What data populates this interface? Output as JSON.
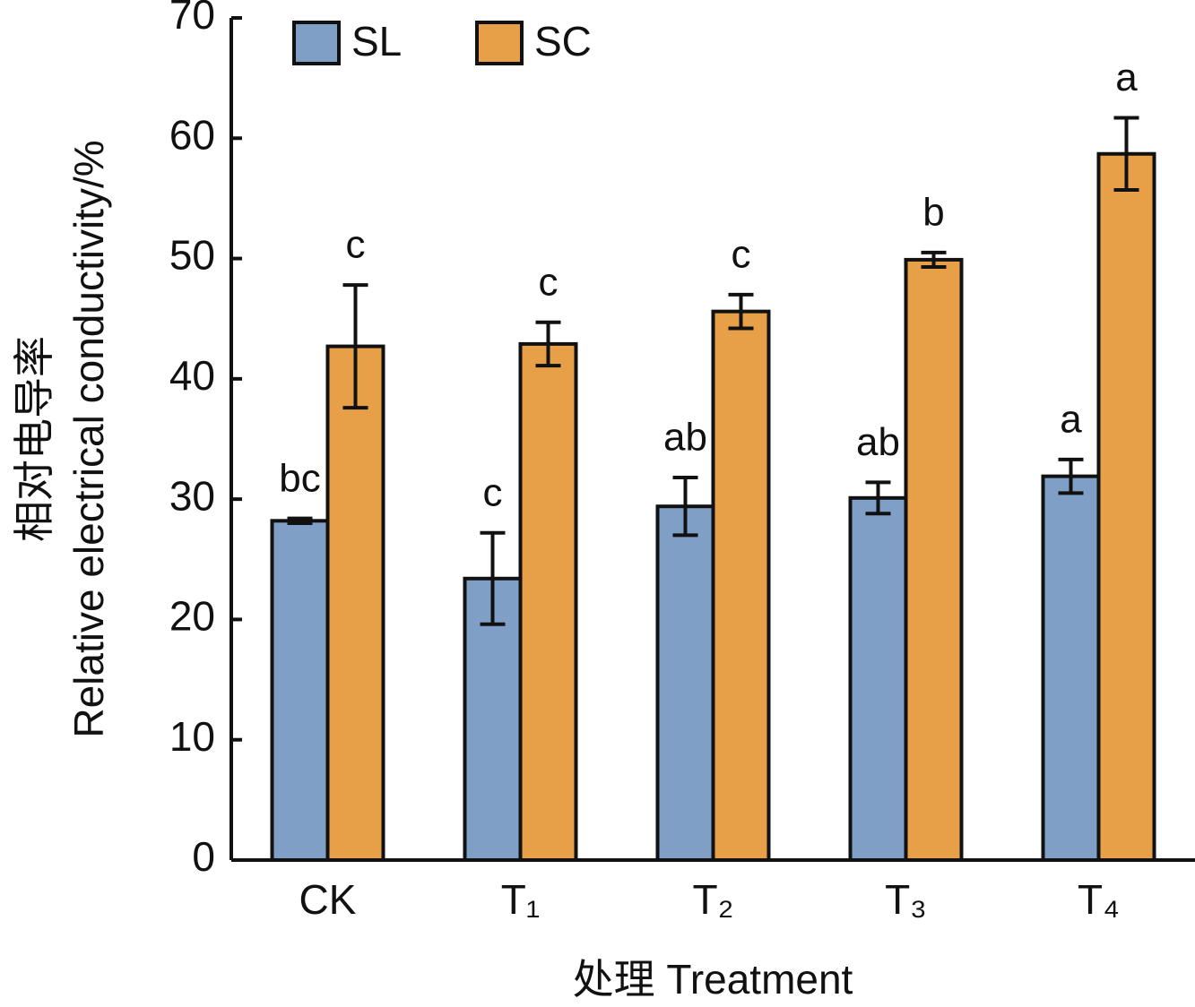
{
  "chart_data": {
    "type": "bar",
    "y_title": [
      "相对电导率",
      "Relative electrical conductivity/%"
    ],
    "x_title": "处理 Treatment",
    "categories": [
      "CK",
      "T₁",
      "T₂",
      "T₃",
      "T₄"
    ],
    "series": [
      {
        "name": "SL",
        "color": "#7f9fc6",
        "values": [
          28.2,
          23.4,
          29.4,
          30.1,
          31.9
        ],
        "errors": [
          0.2,
          3.8,
          2.4,
          1.3,
          1.4
        ],
        "letters": [
          "bc",
          "c",
          "ab",
          "ab",
          "a"
        ]
      },
      {
        "name": "SC",
        "color": "#e8a048",
        "values": [
          42.7,
          42.9,
          45.6,
          49.9,
          58.7
        ],
        "errors": [
          5.1,
          1.8,
          1.4,
          0.6,
          3.0
        ],
        "letters": [
          "c",
          "c",
          "c",
          "b",
          "a"
        ]
      }
    ],
    "ylim": [
      0,
      70
    ],
    "yticks": [
      0,
      10,
      20,
      30,
      40,
      50,
      60,
      70
    ]
  }
}
